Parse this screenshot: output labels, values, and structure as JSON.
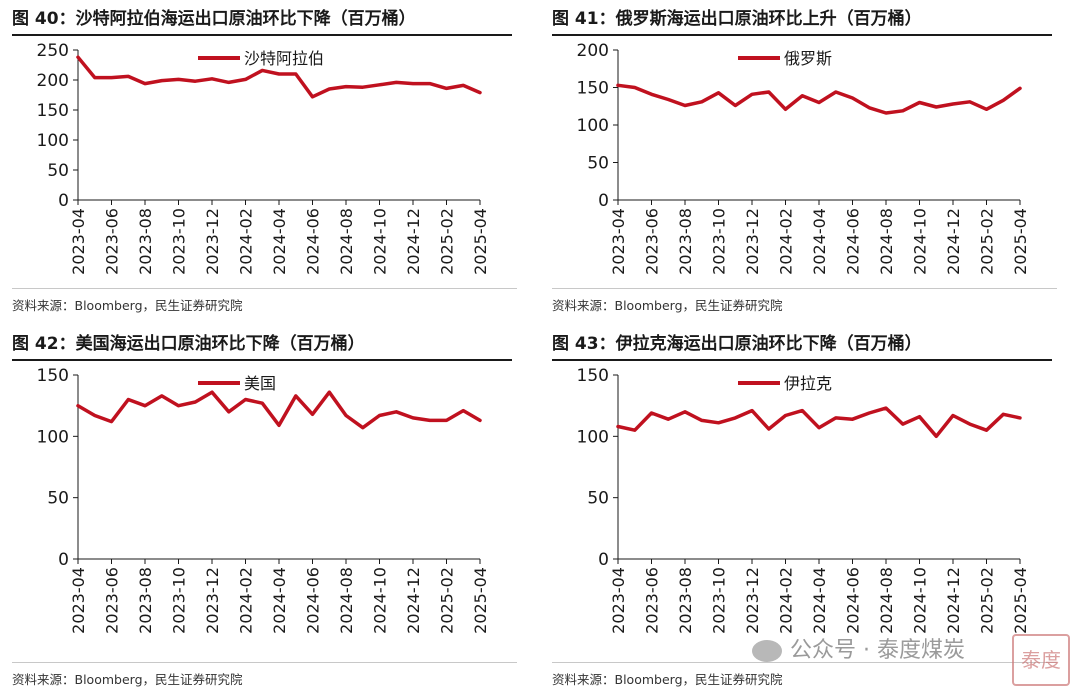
{
  "charts": [
    {
      "title": "图 40：沙特阿拉伯海运出口原油环比下降（百万桶）",
      "source": "资料来源：Bloomberg，民生证券研究院"
    },
    {
      "title": "图 41：俄罗斯海运出口原油环比上升（百万桶）",
      "source": "资料来源：Bloomberg，民生证券研究院"
    },
    {
      "title": "图 42：美国海运出口原油环比下降（百万桶）",
      "source": "资料来源：Bloomberg，民生证券研究院"
    },
    {
      "title": "图 43：伊拉克海运出口原油环比下降（百万桶）",
      "source": "资料来源：Bloomberg，民生证券研究院"
    }
  ],
  "watermark": {
    "text": "公众号 · 泰度煤炭",
    "badge": "泰度"
  },
  "chart_data": [
    {
      "type": "line",
      "title": "图 40：沙特阿拉伯海运出口原油环比下降（百万桶）",
      "x_ticks": [
        "2023-04",
        "2023-06",
        "2023-08",
        "2023-10",
        "2023-12",
        "2024-02",
        "2024-04",
        "2024-06",
        "2024-08",
        "2024-10",
        "2024-12",
        "2025-02",
        "2025-04"
      ],
      "ylim": [
        0,
        250
      ],
      "yticks": [
        0,
        50,
        100,
        150,
        200,
        250
      ],
      "legend_position": "top-center",
      "color": "#c0111f",
      "series": [
        {
          "name": "沙特阿拉伯",
          "values": [
            238,
            204,
            204,
            206,
            194,
            199,
            201,
            198,
            202,
            196,
            201,
            216,
            210,
            210,
            172,
            185,
            189,
            188,
            192,
            196,
            194,
            194,
            186,
            191,
            179
          ]
        }
      ]
    },
    {
      "type": "line",
      "title": "图 41：俄罗斯海运出口原油环比上升（百万桶）",
      "x_ticks": [
        "2023-04",
        "2023-06",
        "2023-08",
        "2023-10",
        "2023-12",
        "2024-02",
        "2024-04",
        "2024-06",
        "2024-08",
        "2024-10",
        "2024-12",
        "2025-02",
        "2025-04"
      ],
      "ylim": [
        0,
        200
      ],
      "yticks": [
        0,
        50,
        100,
        150,
        200
      ],
      "legend_position": "top-center",
      "color": "#c0111f",
      "series": [
        {
          "name": "俄罗斯",
          "values": [
            153,
            150,
            141,
            134,
            126,
            131,
            143,
            126,
            141,
            144,
            121,
            139,
            130,
            144,
            136,
            123,
            116,
            119,
            130,
            124,
            128,
            131,
            121,
            133,
            149
          ]
        }
      ]
    },
    {
      "type": "line",
      "title": "图 42：美国海运出口原油环比下降（百万桶）",
      "x_ticks": [
        "2023-04",
        "2023-06",
        "2023-08",
        "2023-10",
        "2023-12",
        "2024-02",
        "2024-04",
        "2024-06",
        "2024-08",
        "2024-10",
        "2024-12",
        "2025-02",
        "2025-04"
      ],
      "ylim": [
        0,
        150
      ],
      "yticks": [
        0,
        50,
        100,
        150
      ],
      "legend_position": "top-center",
      "color": "#c0111f",
      "series": [
        {
          "name": "美国",
          "values": [
            125,
            117,
            112,
            130,
            125,
            133,
            125,
            128,
            136,
            120,
            130,
            127,
            109,
            133,
            118,
            136,
            117,
            107,
            117,
            120,
            115,
            113,
            113,
            121,
            113
          ]
        }
      ]
    },
    {
      "type": "line",
      "title": "图 43：伊拉克海运出口原油环比下降（百万桶）",
      "x_ticks": [
        "2023-04",
        "2023-06",
        "2023-08",
        "2023-10",
        "2023-12",
        "2024-02",
        "2024-04",
        "2024-06",
        "2024-08",
        "2024-10",
        "2024-12",
        "2025-02",
        "2025-04"
      ],
      "ylim": [
        0,
        150
      ],
      "yticks": [
        0,
        50,
        100,
        150
      ],
      "legend_position": "top-center",
      "color": "#c0111f",
      "series": [
        {
          "name": "伊拉克",
          "values": [
            108,
            105,
            119,
            114,
            120,
            113,
            111,
            115,
            121,
            106,
            117,
            121,
            107,
            115,
            114,
            119,
            123,
            110,
            116,
            100,
            117,
            110,
            105,
            118,
            115
          ]
        }
      ]
    }
  ]
}
